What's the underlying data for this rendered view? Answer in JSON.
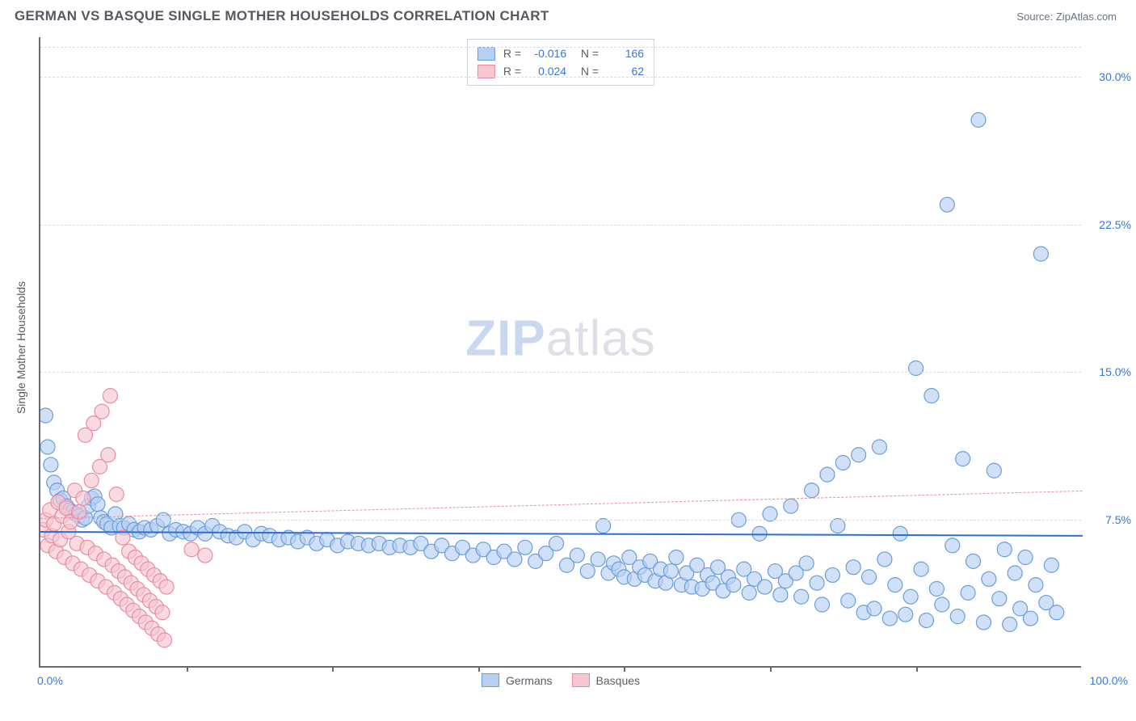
{
  "header": {
    "title": "GERMAN VS BASQUE SINGLE MOTHER HOUSEHOLDS CORRELATION CHART",
    "source": "Source: ZipAtlas.com"
  },
  "watermark": {
    "part1": "ZIP",
    "part2": "atlas"
  },
  "chart": {
    "type": "scatter",
    "background_color": "#ffffff",
    "grid_color": "#d8dbe0",
    "axis_color": "#666a70",
    "tick_label_color": "#3b76d6",
    "ylabel": "Single Mother Households",
    "ylabel_fontsize": 14,
    "xlim": [
      0,
      100
    ],
    "ylim": [
      0,
      32
    ],
    "x_ticks": [
      0,
      100
    ],
    "x_tick_labels": [
      "0.0%",
      "100.0%"
    ],
    "x_tick_marks_at": [
      14,
      28,
      42,
      56,
      70,
      84
    ],
    "y_gridlines": [
      7.5,
      15.0,
      22.5,
      30.0
    ],
    "y_tick_labels": [
      "7.5%",
      "15.0%",
      "22.5%",
      "30.0%"
    ],
    "top_dash_y": 31.5,
    "marker_radius": 9,
    "marker_stroke_width": 1.2,
    "series": [
      {
        "name": "Germans",
        "fill_color": "#b7d0f2",
        "stroke_color": "#6a9ddc",
        "fill_opacity": 0.65,
        "R": "-0.016",
        "N": "166",
        "trend": {
          "y_at_x0": 6.95,
          "y_at_x100": 6.75,
          "color": "#2f6fd0",
          "width": 2.3,
          "dash": false
        },
        "points": [
          [
            0.5,
            12.8
          ],
          [
            0.7,
            11.2
          ],
          [
            1.0,
            10.3
          ],
          [
            1.3,
            9.4
          ],
          [
            1.6,
            9.0
          ],
          [
            1.9,
            8.5
          ],
          [
            2.2,
            8.6
          ],
          [
            2.5,
            8.2
          ],
          [
            2.8,
            8.0
          ],
          [
            3.1,
            7.9
          ],
          [
            3.4,
            7.8
          ],
          [
            3.7,
            7.7
          ],
          [
            4.0,
            7.5
          ],
          [
            4.3,
            7.6
          ],
          [
            4.6,
            8.2
          ],
          [
            4.9,
            8.6
          ],
          [
            5.2,
            8.7
          ],
          [
            5.5,
            8.3
          ],
          [
            5.8,
            7.6
          ],
          [
            6.1,
            7.4
          ],
          [
            6.4,
            7.3
          ],
          [
            6.8,
            7.1
          ],
          [
            7.2,
            7.8
          ],
          [
            7.6,
            7.2
          ],
          [
            8.0,
            7.1
          ],
          [
            8.5,
            7.3
          ],
          [
            9.0,
            7.0
          ],
          [
            9.5,
            6.9
          ],
          [
            10.0,
            7.1
          ],
          [
            10.6,
            7.0
          ],
          [
            11.2,
            7.2
          ],
          [
            11.8,
            7.5
          ],
          [
            12.4,
            6.8
          ],
          [
            13.0,
            7.0
          ],
          [
            13.7,
            6.9
          ],
          [
            14.4,
            6.8
          ],
          [
            15.1,
            7.1
          ],
          [
            15.8,
            6.8
          ],
          [
            16.5,
            7.2
          ],
          [
            17.2,
            6.9
          ],
          [
            18.0,
            6.7
          ],
          [
            18.8,
            6.6
          ],
          [
            19.6,
            6.9
          ],
          [
            20.4,
            6.5
          ],
          [
            21.2,
            6.8
          ],
          [
            22.0,
            6.7
          ],
          [
            22.9,
            6.5
          ],
          [
            23.8,
            6.6
          ],
          [
            24.7,
            6.4
          ],
          [
            25.6,
            6.6
          ],
          [
            26.5,
            6.3
          ],
          [
            27.5,
            6.5
          ],
          [
            28.5,
            6.2
          ],
          [
            29.5,
            6.4
          ],
          [
            30.5,
            6.3
          ],
          [
            31.5,
            6.2
          ],
          [
            32.5,
            6.3
          ],
          [
            33.5,
            6.1
          ],
          [
            34.5,
            6.2
          ],
          [
            35.5,
            6.1
          ],
          [
            36.5,
            6.3
          ],
          [
            37.5,
            5.9
          ],
          [
            38.5,
            6.2
          ],
          [
            39.5,
            5.8
          ],
          [
            40.5,
            6.1
          ],
          [
            41.5,
            5.7
          ],
          [
            42.5,
            6.0
          ],
          [
            43.5,
            5.6
          ],
          [
            44.5,
            5.9
          ],
          [
            45.5,
            5.5
          ],
          [
            46.5,
            6.1
          ],
          [
            47.5,
            5.4
          ],
          [
            48.5,
            5.8
          ],
          [
            49.5,
            6.3
          ],
          [
            50.5,
            5.2
          ],
          [
            51.5,
            5.7
          ],
          [
            52.5,
            4.9
          ],
          [
            53.5,
            5.5
          ],
          [
            54.0,
            7.2
          ],
          [
            54.5,
            4.8
          ],
          [
            55.0,
            5.3
          ],
          [
            55.5,
            5.0
          ],
          [
            56.0,
            4.6
          ],
          [
            56.5,
            5.6
          ],
          [
            57.0,
            4.5
          ],
          [
            57.5,
            5.1
          ],
          [
            58.0,
            4.7
          ],
          [
            58.5,
            5.4
          ],
          [
            59.0,
            4.4
          ],
          [
            59.5,
            5.0
          ],
          [
            60.0,
            4.3
          ],
          [
            60.5,
            4.9
          ],
          [
            61.0,
            5.6
          ],
          [
            61.5,
            4.2
          ],
          [
            62.0,
            4.8
          ],
          [
            62.5,
            4.1
          ],
          [
            63.0,
            5.2
          ],
          [
            63.5,
            4.0
          ],
          [
            64.0,
            4.7
          ],
          [
            64.5,
            4.3
          ],
          [
            65.0,
            5.1
          ],
          [
            65.5,
            3.9
          ],
          [
            66.0,
            4.6
          ],
          [
            66.5,
            4.2
          ],
          [
            67.0,
            7.5
          ],
          [
            67.5,
            5.0
          ],
          [
            68.0,
            3.8
          ],
          [
            68.5,
            4.5
          ],
          [
            69.0,
            6.8
          ],
          [
            69.5,
            4.1
          ],
          [
            70.0,
            7.8
          ],
          [
            70.5,
            4.9
          ],
          [
            71.0,
            3.7
          ],
          [
            71.5,
            4.4
          ],
          [
            72.0,
            8.2
          ],
          [
            72.5,
            4.8
          ],
          [
            73.0,
            3.6
          ],
          [
            73.5,
            5.3
          ],
          [
            74.0,
            9.0
          ],
          [
            74.5,
            4.3
          ],
          [
            75.0,
            3.2
          ],
          [
            75.5,
            9.8
          ],
          [
            76.0,
            4.7
          ],
          [
            76.5,
            7.2
          ],
          [
            77.0,
            10.4
          ],
          [
            77.5,
            3.4
          ],
          [
            78.0,
            5.1
          ],
          [
            78.5,
            10.8
          ],
          [
            79.0,
            2.8
          ],
          [
            79.5,
            4.6
          ],
          [
            80.0,
            3.0
          ],
          [
            80.5,
            11.2
          ],
          [
            81.0,
            5.5
          ],
          [
            81.5,
            2.5
          ],
          [
            82.0,
            4.2
          ],
          [
            82.5,
            6.8
          ],
          [
            83.0,
            2.7
          ],
          [
            83.5,
            3.6
          ],
          [
            84.0,
            15.2
          ],
          [
            84.5,
            5.0
          ],
          [
            85.0,
            2.4
          ],
          [
            85.5,
            13.8
          ],
          [
            86.0,
            4.0
          ],
          [
            86.5,
            3.2
          ],
          [
            87.0,
            23.5
          ],
          [
            87.5,
            6.2
          ],
          [
            88.0,
            2.6
          ],
          [
            88.5,
            10.6
          ],
          [
            89.0,
            3.8
          ],
          [
            89.5,
            5.4
          ],
          [
            90.0,
            27.8
          ],
          [
            90.5,
            2.3
          ],
          [
            91.0,
            4.5
          ],
          [
            91.5,
            10.0
          ],
          [
            92.0,
            3.5
          ],
          [
            92.5,
            6.0
          ],
          [
            93.0,
            2.2
          ],
          [
            93.5,
            4.8
          ],
          [
            94.0,
            3.0
          ],
          [
            94.5,
            5.6
          ],
          [
            95.0,
            2.5
          ],
          [
            95.5,
            4.2
          ],
          [
            96.0,
            21.0
          ],
          [
            96.5,
            3.3
          ],
          [
            97.0,
            5.2
          ],
          [
            97.5,
            2.8
          ]
        ]
      },
      {
        "name": "Basques",
        "fill_color": "#f6c6d1",
        "stroke_color": "#e88ba3",
        "fill_opacity": 0.65,
        "R": "0.024",
        "N": "62",
        "trend": {
          "y_at_x0": 7.6,
          "y_at_x100": 9.0,
          "color": "#e88ba3",
          "width": 1.5,
          "dash": true
        },
        "points": [
          [
            0.3,
            7.0
          ],
          [
            0.5,
            7.5
          ],
          [
            0.7,
            6.2
          ],
          [
            0.9,
            8.0
          ],
          [
            1.1,
            6.7
          ],
          [
            1.3,
            7.3
          ],
          [
            1.5,
            5.9
          ],
          [
            1.7,
            8.4
          ],
          [
            1.9,
            6.5
          ],
          [
            2.1,
            7.7
          ],
          [
            2.3,
            5.6
          ],
          [
            2.5,
            8.1
          ],
          [
            2.7,
            6.9
          ],
          [
            2.9,
            7.4
          ],
          [
            3.1,
            5.3
          ],
          [
            3.3,
            9.0
          ],
          [
            3.5,
            6.3
          ],
          [
            3.7,
            7.9
          ],
          [
            3.9,
            5.0
          ],
          [
            4.1,
            8.6
          ],
          [
            4.3,
            11.8
          ],
          [
            4.5,
            6.1
          ],
          [
            4.7,
            4.7
          ],
          [
            4.9,
            9.5
          ],
          [
            5.1,
            12.4
          ],
          [
            5.3,
            5.8
          ],
          [
            5.5,
            4.4
          ],
          [
            5.7,
            10.2
          ],
          [
            5.9,
            13.0
          ],
          [
            6.1,
            5.5
          ],
          [
            6.3,
            4.1
          ],
          [
            6.5,
            10.8
          ],
          [
            6.7,
            13.8
          ],
          [
            6.9,
            5.2
          ],
          [
            7.1,
            3.8
          ],
          [
            7.3,
            8.8
          ],
          [
            7.5,
            4.9
          ],
          [
            7.7,
            3.5
          ],
          [
            7.9,
            6.6
          ],
          [
            8.1,
            4.6
          ],
          [
            8.3,
            3.2
          ],
          [
            8.5,
            5.9
          ],
          [
            8.7,
            4.3
          ],
          [
            8.9,
            2.9
          ],
          [
            9.1,
            5.6
          ],
          [
            9.3,
            4.0
          ],
          [
            9.5,
            2.6
          ],
          [
            9.7,
            5.3
          ],
          [
            9.9,
            3.7
          ],
          [
            10.1,
            2.3
          ],
          [
            10.3,
            5.0
          ],
          [
            10.5,
            3.4
          ],
          [
            10.7,
            2.0
          ],
          [
            10.9,
            4.7
          ],
          [
            11.1,
            3.1
          ],
          [
            11.3,
            1.7
          ],
          [
            11.5,
            4.4
          ],
          [
            11.7,
            2.8
          ],
          [
            11.9,
            1.4
          ],
          [
            12.1,
            4.1
          ],
          [
            14.5,
            6.0
          ],
          [
            15.8,
            5.7
          ]
        ]
      }
    ],
    "legend_bottom": [
      {
        "label": "Germans",
        "fill": "#b7d0f2",
        "stroke": "#6a9ddc"
      },
      {
        "label": "Basques",
        "fill": "#f6c6d1",
        "stroke": "#e88ba3"
      }
    ]
  }
}
